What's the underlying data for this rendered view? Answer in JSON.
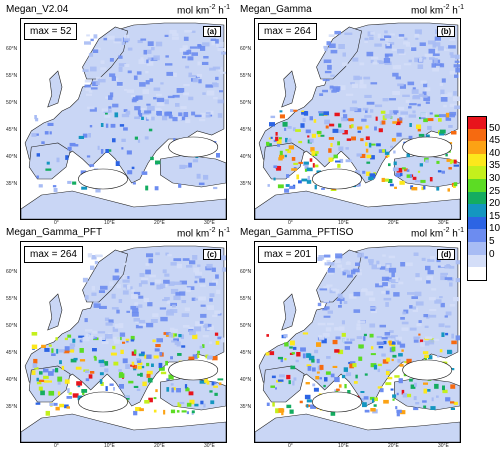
{
  "units": {
    "main": "mol km",
    "exp": "-2",
    "tail": " h",
    "exp2": "-1"
  },
  "panels": [
    {
      "title": "Megan_V2.04",
      "max_label": "max = 52",
      "letter": "(a)",
      "intensity": 0.35
    },
    {
      "title": "Megan_Gamma",
      "max_label": "max = 264",
      "letter": "(b)",
      "intensity": 1.0
    },
    {
      "title": "Megan_Gamma_PFT",
      "max_label": "max = 264",
      "letter": "(c)",
      "intensity": 0.95
    },
    {
      "title": "Megan_Gamma_PFTISO",
      "max_label": "max = 201",
      "letter": "(d)",
      "intensity": 0.9
    }
  ],
  "lat_ticks": [
    "60°N",
    "55°N",
    "50°N",
    "45°N",
    "40°N",
    "35°N"
  ],
  "lon_ticks": [
    "0°",
    "10°E",
    "20°E",
    "30°E"
  ],
  "colorbar": {
    "labels": [
      "50",
      "45",
      "40",
      "35",
      "30",
      "25",
      "20",
      "15",
      "10",
      "5",
      "0"
    ],
    "colors": [
      "#e8141c",
      "#f66a10",
      "#fca214",
      "#fce81c",
      "#c4f01c",
      "#5cdc24",
      "#14ac60",
      "#1496c0",
      "#2c64e4",
      "#6c8cf0",
      "#a8bcf4",
      "#d4def8",
      "#ffffff"
    ]
  }
}
